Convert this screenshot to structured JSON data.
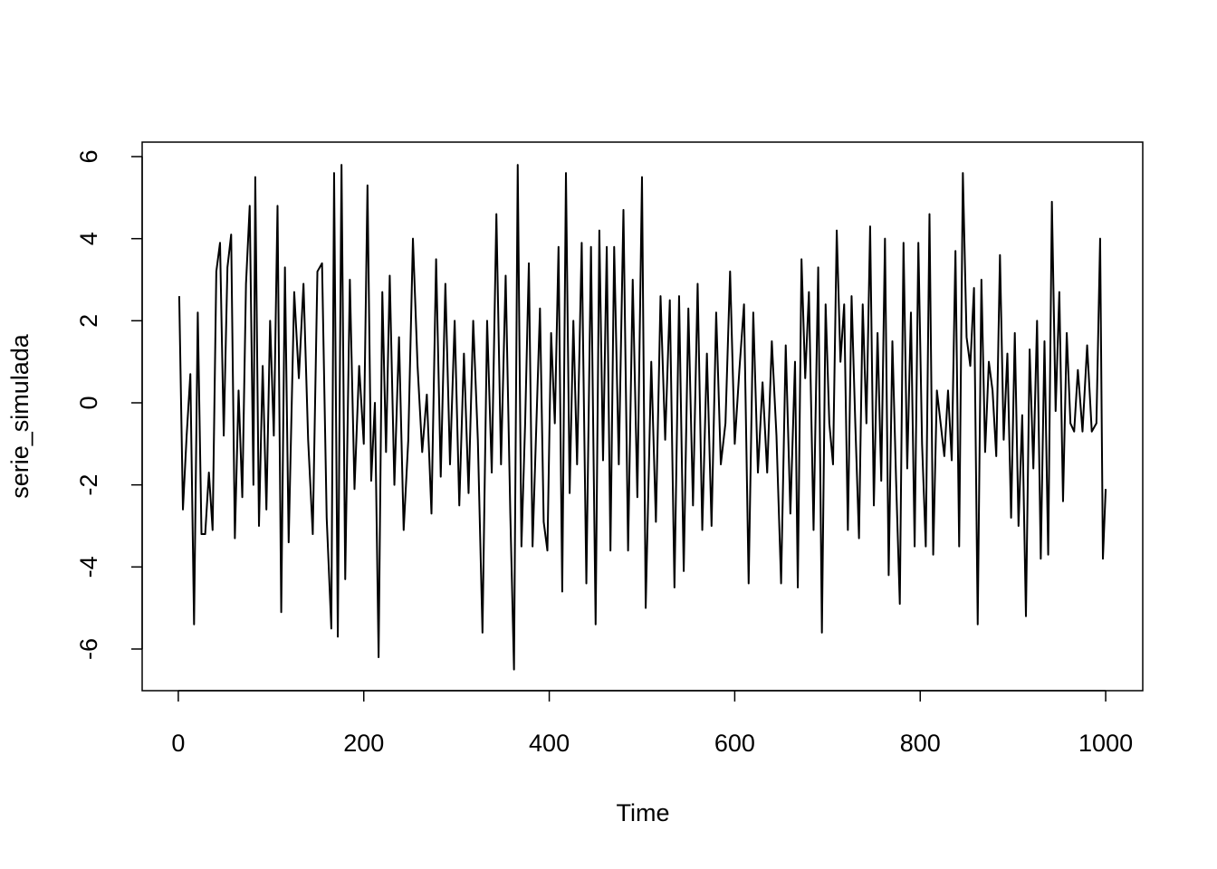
{
  "chart_data": {
    "type": "line",
    "xlabel": "Time",
    "ylabel": "serie_simulada",
    "color": "#000000",
    "xlim": [
      -38.96,
      1039.96
    ],
    "ylim": [
      -7.015,
      6.353
    ],
    "xticks": [
      0,
      200,
      400,
      600,
      800,
      1000
    ],
    "yticks": [
      -6,
      -4,
      -2,
      0,
      2,
      4,
      6
    ],
    "x": [
      1,
      5,
      9,
      13,
      17,
      21,
      25,
      29,
      33,
      37,
      41,
      45,
      49,
      53,
      57,
      61,
      65,
      69,
      73,
      77,
      81,
      83,
      87,
      91,
      95,
      99,
      103,
      107,
      111,
      115,
      119,
      125,
      130,
      135,
      140,
      145,
      150,
      155,
      160,
      165,
      168,
      172,
      176,
      180,
      185,
      190,
      195,
      200,
      204,
      208,
      212,
      216,
      220,
      224,
      228,
      233,
      238,
      243,
      248,
      253,
      258,
      263,
      268,
      273,
      278,
      283,
      288,
      293,
      298,
      303,
      308,
      313,
      318,
      323,
      328,
      333,
      338,
      343,
      348,
      353,
      358,
      362,
      366,
      370,
      374,
      378,
      382,
      386,
      390,
      394,
      398,
      402,
      406,
      410,
      414,
      418,
      422,
      426,
      430,
      435,
      440,
      445,
      450,
      454,
      458,
      462,
      466,
      470,
      475,
      480,
      485,
      490,
      495,
      500,
      504,
      510,
      515,
      520,
      525,
      530,
      535,
      540,
      545,
      550,
      555,
      560,
      565,
      570,
      575,
      580,
      585,
      590,
      595,
      600,
      605,
      610,
      615,
      620,
      625,
      630,
      635,
      640,
      645,
      650,
      655,
      660,
      665,
      668,
      672,
      676,
      680,
      685,
      690,
      694,
      698,
      702,
      706,
      710,
      714,
      718,
      722,
      726,
      730,
      734,
      738,
      742,
      746,
      750,
      754,
      758,
      762,
      766,
      770,
      774,
      778,
      782,
      786,
      790,
      794,
      798,
      802,
      806,
      810,
      814,
      818,
      822,
      826,
      830,
      834,
      838,
      842,
      846,
      850,
      854,
      858,
      862,
      866,
      870,
      874,
      878,
      882,
      886,
      890,
      894,
      898,
      902,
      906,
      910,
      914,
      918,
      922,
      926,
      930,
      934,
      938,
      942,
      946,
      950,
      954,
      958,
      962,
      966,
      970,
      975,
      980,
      985,
      990,
      994,
      997,
      1000
    ],
    "values": [
      2.6,
      -2.6,
      -0.8,
      0.7,
      -5.4,
      2.2,
      -3.2,
      -3.2,
      -1.7,
      -3.1,
      3.2,
      3.9,
      -0.8,
      3.3,
      4.1,
      -3.3,
      0.3,
      -2.3,
      2.9,
      4.8,
      -2.0,
      5.5,
      -3.0,
      0.9,
      -2.6,
      2.0,
      -0.8,
      4.8,
      -5.1,
      3.3,
      -3.4,
      2.7,
      0.6,
      2.9,
      -0.9,
      -3.2,
      3.2,
      3.4,
      -2.8,
      -5.5,
      5.6,
      -5.7,
      5.8,
      -4.3,
      3.0,
      -2.1,
      0.9,
      -1.0,
      5.3,
      -1.9,
      0.0,
      -6.2,
      2.7,
      -1.2,
      3.1,
      -2.0,
      1.6,
      -3.1,
      -0.9,
      4.0,
      0.9,
      -1.2,
      0.2,
      -2.7,
      3.5,
      -1.8,
      2.9,
      -1.5,
      2.0,
      -2.5,
      1.2,
      -2.2,
      2.0,
      -0.9,
      -5.6,
      2.0,
      -1.7,
      4.6,
      -1.5,
      3.1,
      -2.7,
      -6.5,
      5.8,
      -3.5,
      -0.5,
      3.4,
      -3.5,
      -0.6,
      2.3,
      -2.9,
      -3.6,
      1.7,
      -0.5,
      3.8,
      -4.6,
      5.6,
      -2.2,
      2.0,
      -1.5,
      3.9,
      -4.4,
      3.8,
      -5.4,
      4.2,
      -1.4,
      3.8,
      -3.6,
      3.8,
      -1.5,
      4.7,
      -3.6,
      3.0,
      -2.3,
      5.5,
      -5.0,
      1.0,
      -2.9,
      2.6,
      -0.9,
      2.5,
      -4.5,
      2.6,
      -4.1,
      2.3,
      -2.5,
      2.9,
      -3.1,
      1.2,
      -3.0,
      2.2,
      -1.5,
      -0.5,
      3.2,
      -1.0,
      0.8,
      2.4,
      -4.4,
      2.2,
      -1.7,
      0.5,
      -1.7,
      1.5,
      -0.8,
      -4.4,
      1.4,
      -2.7,
      1.0,
      -4.5,
      3.5,
      0.6,
      2.7,
      -3.1,
      3.3,
      -5.6,
      2.4,
      -0.5,
      -1.5,
      4.2,
      1.0,
      2.4,
      -3.1,
      2.6,
      -0.5,
      -3.3,
      2.4,
      -0.5,
      4.3,
      -2.5,
      1.7,
      -1.9,
      4.0,
      -4.2,
      1.5,
      -1.9,
      -4.9,
      3.9,
      -1.6,
      2.2,
      -3.5,
      3.9,
      -1.0,
      -3.5,
      4.6,
      -3.7,
      0.3,
      -0.5,
      -1.3,
      0.3,
      -1.4,
      3.7,
      -3.5,
      5.6,
      1.6,
      0.9,
      2.8,
      -5.4,
      3.0,
      -1.2,
      1.0,
      0.3,
      -1.3,
      3.6,
      -0.9,
      1.2,
      -2.8,
      1.7,
      -3.0,
      -0.3,
      -5.2,
      1.3,
      -1.6,
      2.0,
      -3.8,
      1.5,
      -3.7,
      4.9,
      -0.2,
      2.7,
      -2.4,
      1.7,
      -0.5,
      -0.7,
      0.8,
      -0.7,
      1.4,
      -0.7,
      -0.5,
      4.0,
      -3.8,
      -2.1
    ]
  }
}
